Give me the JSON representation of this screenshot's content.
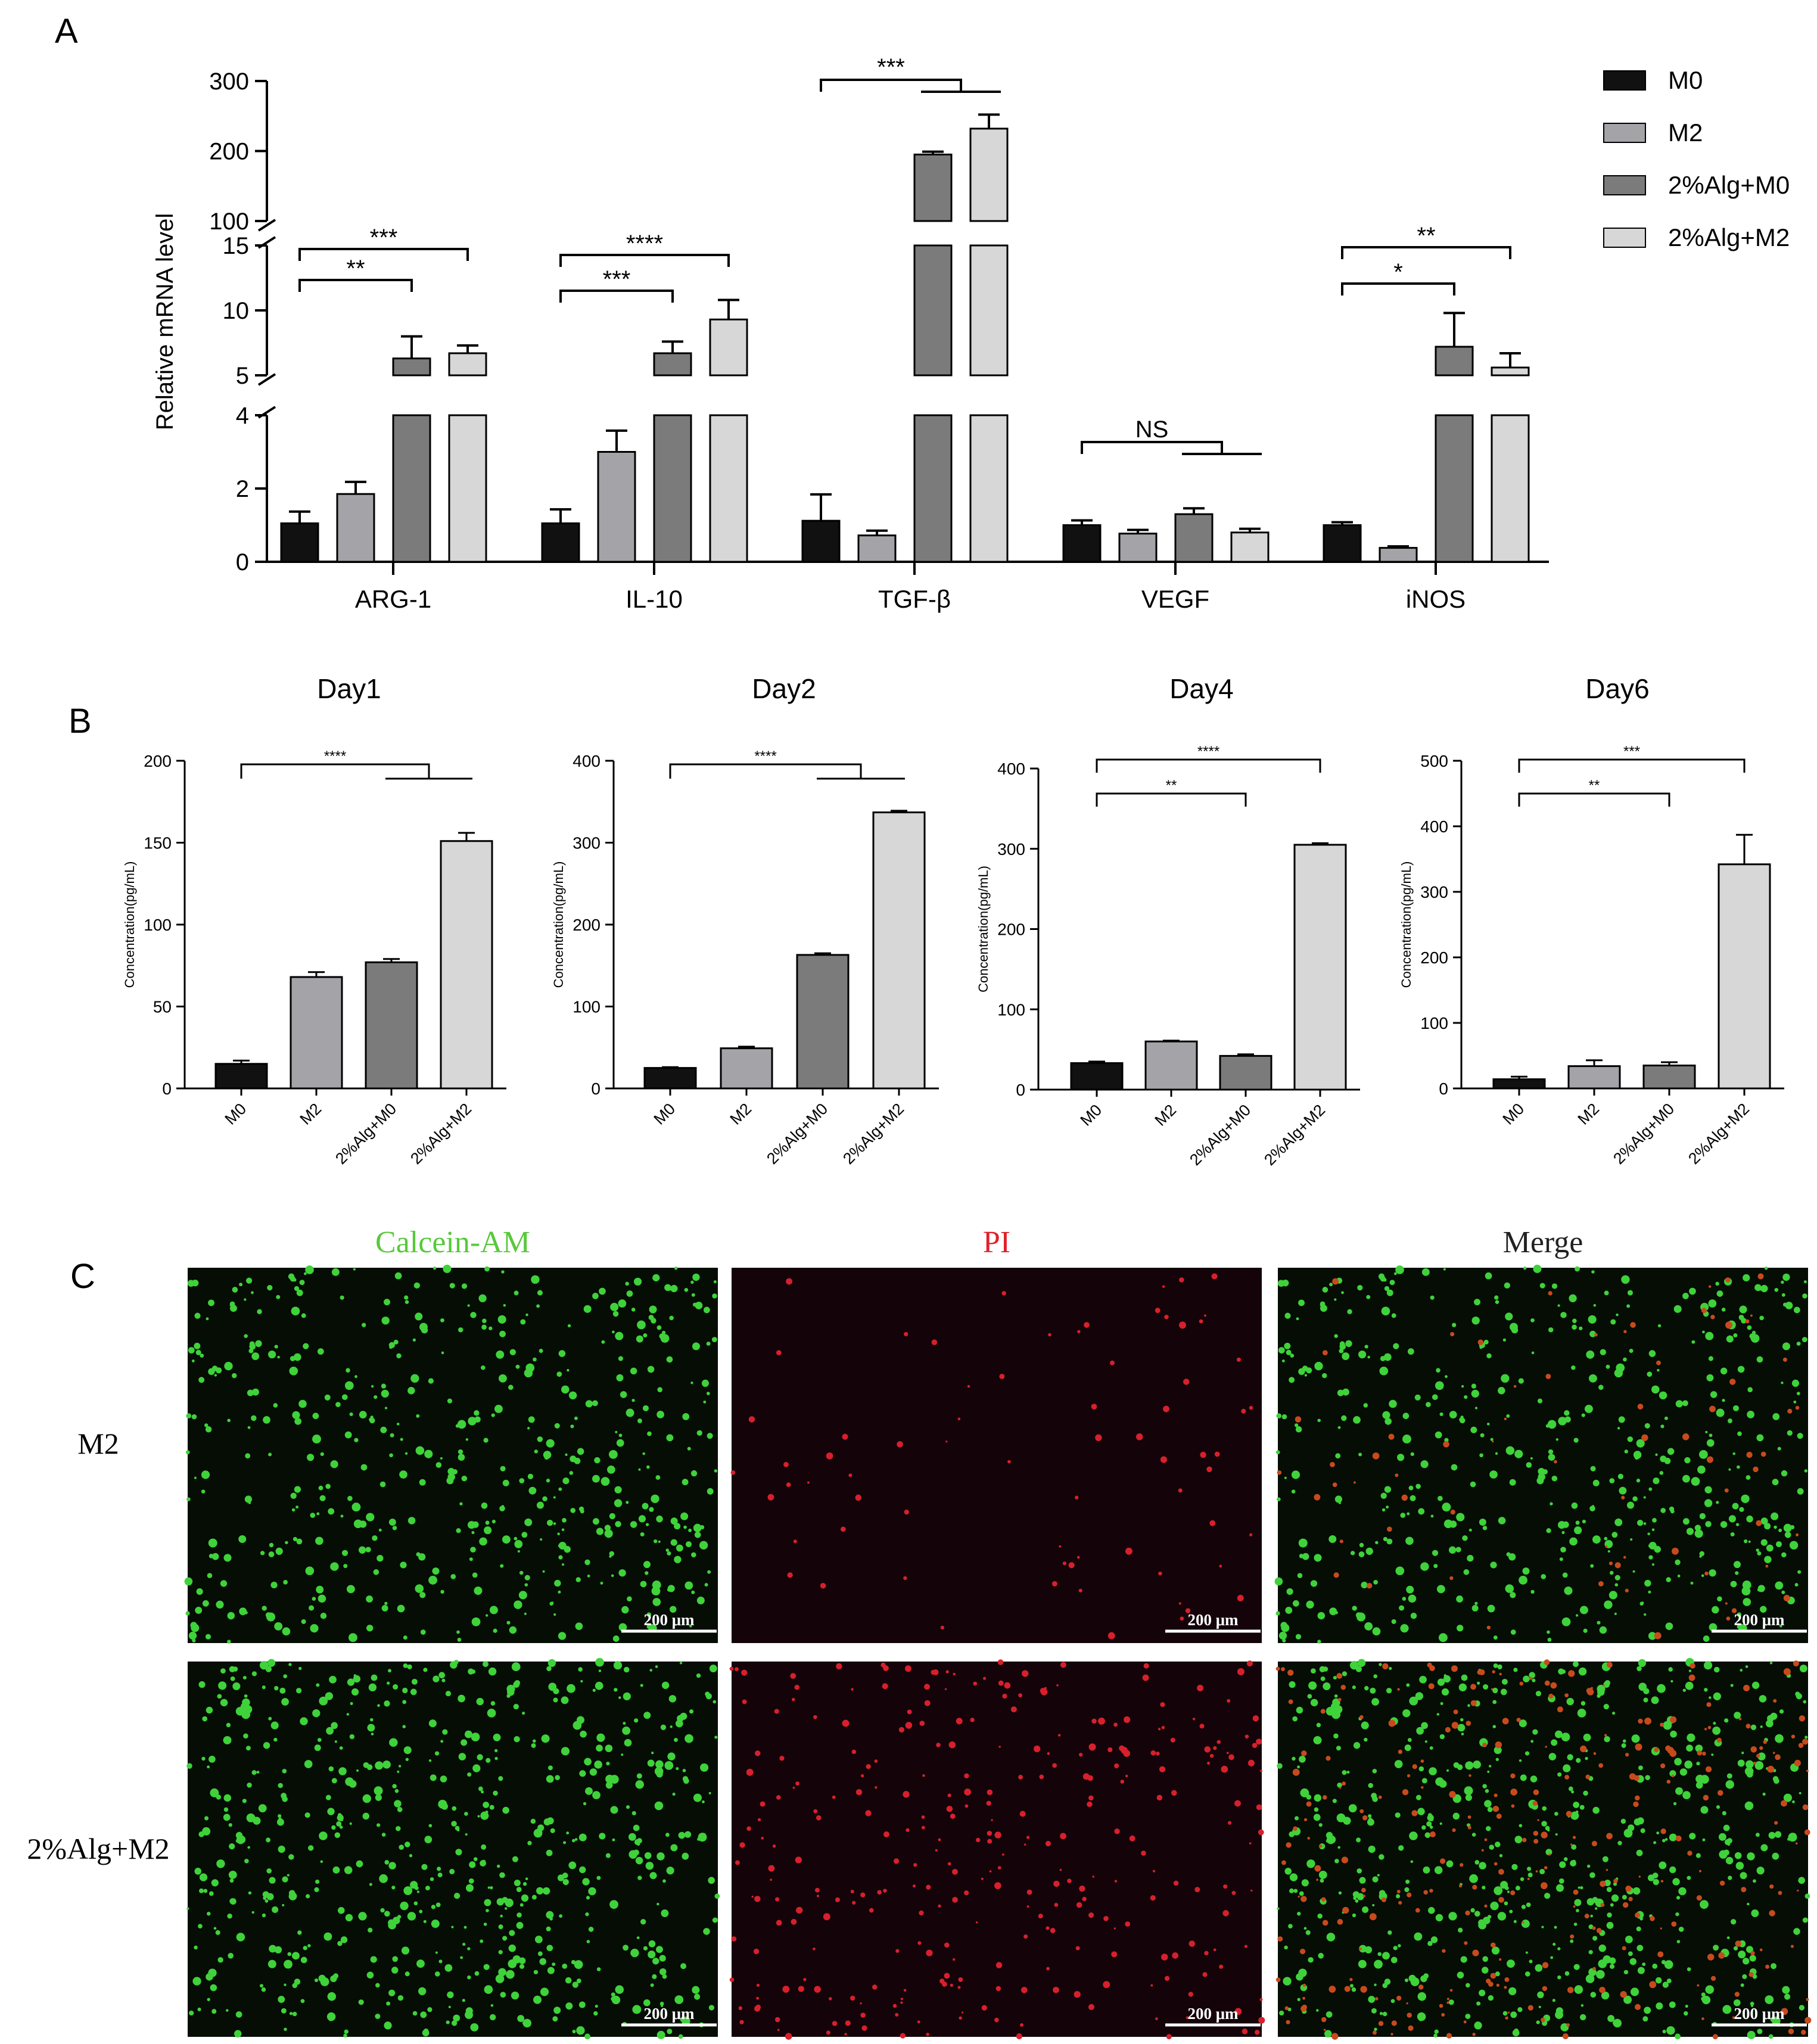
{
  "panel_labels": {
    "a": "A",
    "b": "B",
    "c": "C"
  },
  "colors": {
    "M0": "#111111",
    "M2": "#a3a3a8",
    "2%Alg+M0": "#7b7b7b",
    "2%Alg+M2": "#d7d7d7",
    "calcein": "#57c93a",
    "pi": "#e0202a",
    "merge": "#222222"
  },
  "chart_data": [
    {
      "type": "bar",
      "panel": "A",
      "categories": [
        "ARG-1",
        "IL-10",
        "TGF-β",
        "VEGF",
        "iNOS"
      ],
      "series": [
        {
          "name": "M0",
          "values": [
            1.05,
            1.05,
            1.12,
            1.0,
            1.0
          ],
          "errors": [
            0.32,
            0.38,
            0.72,
            0.13,
            0.08
          ]
        },
        {
          "name": "M2",
          "values": [
            1.85,
            3.0,
            0.72,
            0.77,
            0.38
          ],
          "errors": [
            0.33,
            0.58,
            0.13,
            0.1,
            0.04
          ]
        },
        {
          "name": "2%Alg+M0",
          "values": [
            6.3,
            6.7,
            195,
            1.3,
            7.2
          ],
          "errors": [
            1.7,
            0.9,
            4,
            0.16,
            2.6
          ]
        },
        {
          "name": "2%Alg+M2",
          "values": [
            6.7,
            9.3,
            232,
            0.8,
            5.6
          ],
          "errors": [
            0.6,
            1.5,
            20,
            0.1,
            1.1
          ]
        }
      ],
      "ylabel": "Relative mRNA level",
      "broken_axis": true,
      "y_segments": [
        {
          "range": [
            0,
            4
          ],
          "ticks": [
            0,
            2,
            4
          ]
        },
        {
          "range": [
            5,
            15
          ],
          "ticks": [
            5,
            10,
            15
          ]
        },
        {
          "range": [
            100,
            300
          ],
          "ticks": [
            100,
            200,
            300
          ]
        }
      ],
      "legend_position": "top-right",
      "annotations": [
        {
          "label": "**",
          "cat": 0,
          "from": 0,
          "to": 2
        },
        {
          "label": "***",
          "cat": 0,
          "from": 0,
          "to": 3
        },
        {
          "label": "***",
          "cat": 1,
          "from": 0,
          "to": 2
        },
        {
          "label": "****",
          "cat": 1,
          "from": 0,
          "to": 3
        },
        {
          "label": "***",
          "cat": 2,
          "from": 0,
          "to": "2-3"
        },
        {
          "label": "NS",
          "cat": 3,
          "from": 0,
          "to": "2-3"
        },
        {
          "label": "*",
          "cat": 4,
          "from": 0,
          "to": 2
        },
        {
          "label": "**",
          "cat": 4,
          "from": 0,
          "to": 3
        }
      ]
    },
    {
      "type": "bar",
      "panel": "B",
      "title": "Day1",
      "categories": [
        "M0",
        "M2",
        "2%Alg+M0",
        "2%Alg+M2"
      ],
      "values": [
        15,
        68,
        77,
        151
      ],
      "errors": [
        2,
        3,
        2,
        5
      ],
      "ylabel": "Concentration(pg/mL)",
      "ylim": [
        0,
        200
      ],
      "ticks": [
        0,
        50,
        100,
        150,
        200
      ],
      "annotations": [
        {
          "label": "****",
          "from": 0,
          "to": "2-3"
        }
      ]
    },
    {
      "type": "bar",
      "panel": "B",
      "title": "Day2",
      "categories": [
        "M0",
        "M2",
        "2%Alg+M0",
        "2%Alg+M2"
      ],
      "values": [
        25,
        49,
        163,
        337
      ],
      "errors": [
        1,
        2,
        2,
        2
      ],
      "ylabel": "Concentration(pg/mL)",
      "ylim": [
        0,
        400
      ],
      "ticks": [
        0,
        100,
        200,
        300,
        400
      ],
      "annotations": [
        {
          "label": "****",
          "from": 0,
          "to": "2-3"
        }
      ]
    },
    {
      "type": "bar",
      "panel": "B",
      "title": "Day4",
      "categories": [
        "M0",
        "M2",
        "2%Alg+M0",
        "2%Alg+M2"
      ],
      "values": [
        33,
        60,
        42,
        305
      ],
      "errors": [
        2,
        1,
        2,
        2
      ],
      "ylabel": "Concentration(pg/mL)",
      "ylim": [
        0,
        400
      ],
      "ticks": [
        0,
        100,
        200,
        300,
        400
      ],
      "annotations": [
        {
          "label": "**",
          "from": 0,
          "to": 2
        },
        {
          "label": "****",
          "from": 0,
          "to": 3
        }
      ]
    },
    {
      "type": "bar",
      "panel": "B",
      "title": "Day6",
      "categories": [
        "M0",
        "M2",
        "2%Alg+M0",
        "2%Alg+M2"
      ],
      "values": [
        14,
        34,
        35,
        342
      ],
      "errors": [
        4,
        9,
        5,
        45
      ],
      "ylabel": "Concentration(pg/mL)",
      "ylim": [
        0,
        500
      ],
      "ticks": [
        0,
        100,
        200,
        300,
        400,
        500
      ],
      "annotations": [
        {
          "label": "**",
          "from": 0,
          "to": 2
        },
        {
          "label": "***",
          "from": 0,
          "to": 3
        }
      ]
    }
  ],
  "panel_c": {
    "columns": [
      "Calcein-AM",
      "PI",
      "Merge"
    ],
    "rows": [
      "M2",
      "2%Alg+M2"
    ],
    "scale_bar": "200 μm"
  }
}
